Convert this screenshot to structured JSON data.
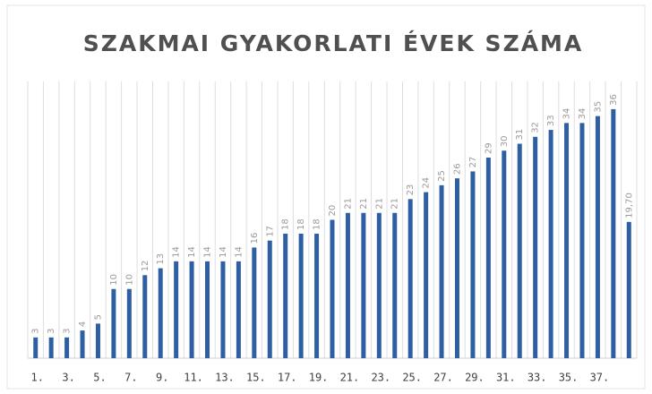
{
  "chart_data": {
    "type": "bar",
    "title": "SZAKMAI GYAKORLATI ÉVEK SZÁMA",
    "categories": [
      "1.",
      null,
      "3.",
      null,
      "5.",
      null,
      "7.",
      null,
      "9.",
      null,
      "11.",
      null,
      "13.",
      null,
      "15.",
      null,
      "17.",
      null,
      "19.",
      null,
      "21.",
      null,
      "23.",
      null,
      "25.",
      null,
      "27.",
      null,
      "29.",
      null,
      "31.",
      null,
      "33.",
      null,
      "35.",
      null,
      "37.",
      null,
      null
    ],
    "values": [
      3,
      3,
      3,
      4,
      5,
      10,
      10,
      12,
      13,
      14,
      14,
      14,
      14,
      14,
      16,
      17,
      18,
      18,
      18,
      20,
      21,
      21,
      21,
      21,
      23,
      24,
      25,
      26,
      27,
      29,
      30,
      31,
      32,
      33,
      34,
      34,
      35,
      36,
      19.7
    ],
    "value_labels": [
      "3",
      "3",
      "3",
      "4",
      "5",
      "10",
      "10",
      "12",
      "13",
      "14",
      "14",
      "14",
      "14",
      "14",
      "16",
      "17",
      "18",
      "18",
      "18",
      "20",
      "21",
      "21",
      "21",
      "21",
      "23",
      "24",
      "25",
      "26",
      "27",
      "29",
      "30",
      "31",
      "32",
      "33",
      "34",
      "34",
      "35",
      "36",
      "19,70"
    ],
    "color": "#2e5fa3",
    "ylim": [
      0,
      40
    ]
  }
}
